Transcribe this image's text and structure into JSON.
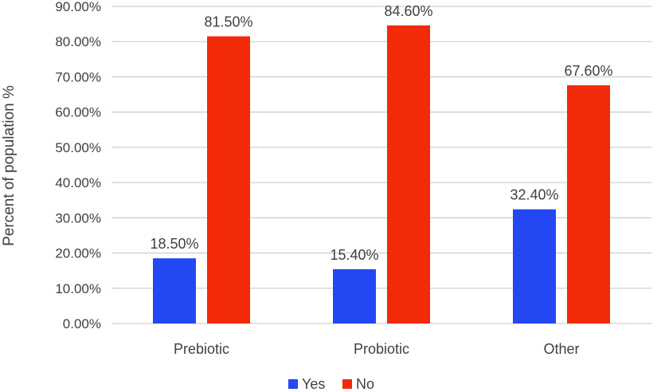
{
  "chart_data": {
    "type": "bar",
    "title": "",
    "xlabel": "",
    "ylabel": "Percent of population %",
    "ylim": [
      0,
      90
    ],
    "yticks": [
      0,
      10,
      20,
      30,
      40,
      50,
      60,
      70,
      80,
      90
    ],
    "ytick_format": "percent_2dp",
    "grid": true,
    "legend_position": "bottom",
    "categories": [
      "Prebiotic",
      "Probiotic",
      "Other"
    ],
    "series": [
      {
        "name": "Yes",
        "color": "#2347f2",
        "values": [
          18.5,
          15.4,
          32.4
        ],
        "labels": [
          "18.50%",
          "15.40%",
          "32.40%"
        ]
      },
      {
        "name": "No",
        "color": "#f22a0a",
        "values": [
          81.5,
          84.6,
          67.6
        ],
        "labels": [
          "81.50%",
          "84.60%",
          "67.60%"
        ]
      }
    ]
  }
}
